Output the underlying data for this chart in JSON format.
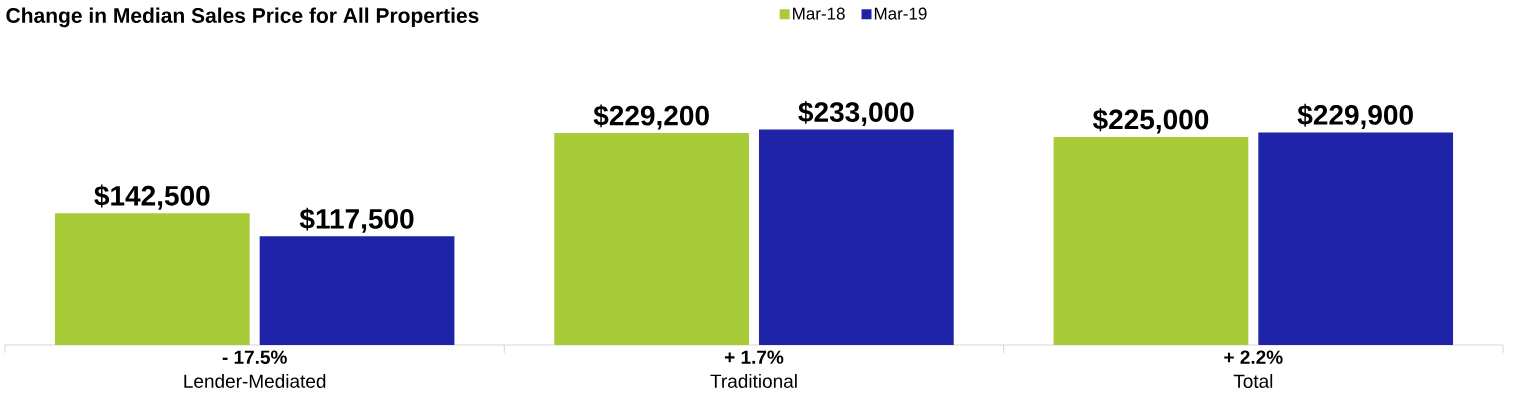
{
  "chart_data": {
    "type": "bar",
    "title": "Change in Median Sales Price for All Properties",
    "categories": [
      "Lender-Mediated",
      "Traditional",
      "Total"
    ],
    "series": [
      {
        "name": "Mar-18",
        "color": "#a8cb38",
        "values": [
          142500,
          229200,
          225000
        ],
        "value_labels": [
          "$142,500",
          "$229,200",
          "$225,000"
        ]
      },
      {
        "name": "Mar-19",
        "color": "#1f23a8",
        "values": [
          117500,
          233000,
          229900
        ],
        "value_labels": [
          "$117,500",
          "$233,000",
          "$229,900"
        ]
      }
    ],
    "annotations": [
      "- 17.5%",
      "+ 1.7%",
      "+ 2.2%"
    ],
    "legend": "top"
  }
}
